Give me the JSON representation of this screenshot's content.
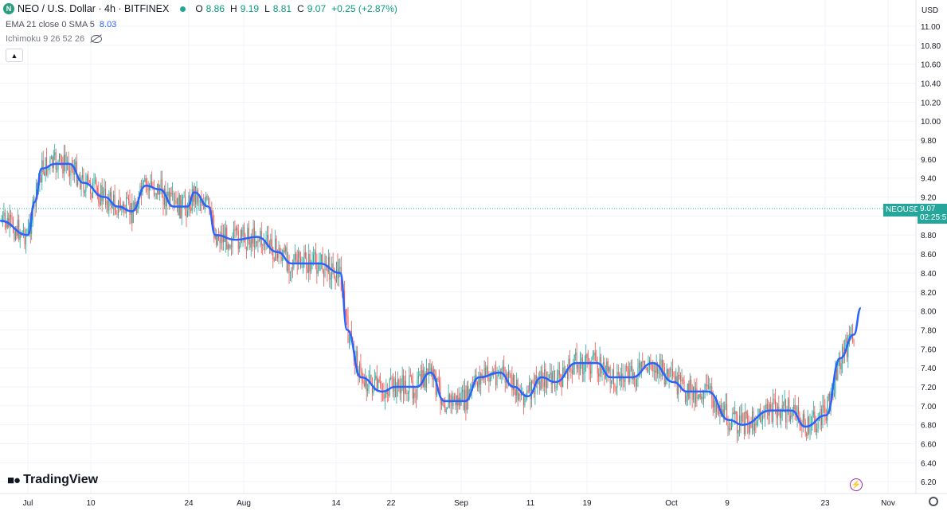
{
  "header": {
    "symbol_icon": "neo-logo-icon",
    "title": "NEO / U.S. Dollar · 4h · BITFINEX",
    "ohlc": [
      {
        "k": "O",
        "v": "8.86"
      },
      {
        "k": "H",
        "v": "9.19"
      },
      {
        "k": "L",
        "v": "8.81"
      },
      {
        "k": "C",
        "v": "9.07"
      }
    ],
    "change": "+0.25 (+2.87%)"
  },
  "indicators": {
    "ema_label": "EMA 21 close 0 SMA 5",
    "ema_value": "8.03",
    "ichimoku_label": "Ichimoku 9 26 52 26"
  },
  "brand": "TradingView",
  "price_label": {
    "symbol": "NEOUSD",
    "price": "9.07",
    "countdown": "02:25:5"
  },
  "currency": "USD",
  "colors": {
    "up": "#26a69a",
    "down": "#ef5350",
    "ema": "#2962ff",
    "accent": "#26a69a"
  },
  "chart_data": {
    "type": "candlestick",
    "y_axis": {
      "ticks": [
        "11.00",
        "10.80",
        "10.60",
        "10.40",
        "10.20",
        "10.00",
        "9.80",
        "9.60",
        "9.40",
        "9.20",
        "9.00",
        "8.80",
        "8.60",
        "8.40",
        "8.20",
        "8.00",
        "7.80",
        "7.60",
        "7.40",
        "7.20",
        "7.00",
        "6.80",
        "6.60",
        "6.40",
        "6.20"
      ],
      "range": [
        6.1,
        11.1
      ]
    },
    "x_axis": {
      "ticks": [
        "Jul",
        "10",
        "24",
        "Aug",
        "14",
        "22",
        "Sep",
        "11",
        "19",
        "Oct",
        "9",
        "23",
        "Nov"
      ]
    },
    "last_price": 9.07,
    "ema_series": {
      "name": "EMA 21",
      "points": [
        [
          "Jun 28",
          8.95
        ],
        [
          "Jul 1",
          8.8
        ],
        [
          "Jul 2",
          9.15
        ],
        [
          "Jul 3",
          9.5
        ],
        [
          "Jul 5",
          9.55
        ],
        [
          "Jul 7",
          9.55
        ],
        [
          "Jul 9",
          9.35
        ],
        [
          "Jul 12",
          9.2
        ],
        [
          "Jul 14",
          9.1
        ],
        [
          "Jul 16",
          9.05
        ],
        [
          "Jul 18",
          9.32
        ],
        [
          "Jul 20",
          9.28
        ],
        [
          "Jul 22",
          9.1
        ],
        [
          "Jul 24",
          9.1
        ],
        [
          "Jul 25",
          9.25
        ],
        [
          "Jul 27",
          9.1
        ],
        [
          "Jul 28",
          8.8
        ],
        [
          "Jul 31",
          8.75
        ],
        [
          "Aug 3",
          8.78
        ],
        [
          "Aug 6",
          8.62
        ],
        [
          "Aug 8",
          8.5
        ],
        [
          "Aug 12",
          8.5
        ],
        [
          "Aug 15",
          8.4
        ],
        [
          "Aug 16",
          7.8
        ],
        [
          "Aug 18",
          7.3
        ],
        [
          "Aug 21",
          7.15
        ],
        [
          "Aug 23",
          7.2
        ],
        [
          "Aug 26",
          7.2
        ],
        [
          "Aug 28",
          7.35
        ],
        [
          "Aug 30",
          7.05
        ],
        [
          "Sep 2",
          7.05
        ],
        [
          "Sep 4",
          7.3
        ],
        [
          "Sep 7",
          7.35
        ],
        [
          "Sep 9",
          7.2
        ],
        [
          "Sep 11",
          7.1
        ],
        [
          "Sep 13",
          7.3
        ],
        [
          "Sep 15",
          7.25
        ],
        [
          "Sep 18",
          7.45
        ],
        [
          "Sep 21",
          7.45
        ],
        [
          "Sep 23",
          7.3
        ],
        [
          "Sep 26",
          7.3
        ],
        [
          "Sep 29",
          7.45
        ],
        [
          "Oct 2",
          7.25
        ],
        [
          "Oct 4",
          7.15
        ],
        [
          "Oct 7",
          7.15
        ],
        [
          "Oct 10",
          6.85
        ],
        [
          "Oct 12",
          6.8
        ],
        [
          "Oct 16",
          6.95
        ],
        [
          "Oct 19",
          6.95
        ],
        [
          "Oct 21",
          6.78
        ],
        [
          "Oct 24",
          6.9
        ],
        [
          "Oct 26",
          7.5
        ],
        [
          "Oct 28",
          7.75
        ],
        [
          "Oct 29",
          8.03
        ]
      ]
    }
  }
}
